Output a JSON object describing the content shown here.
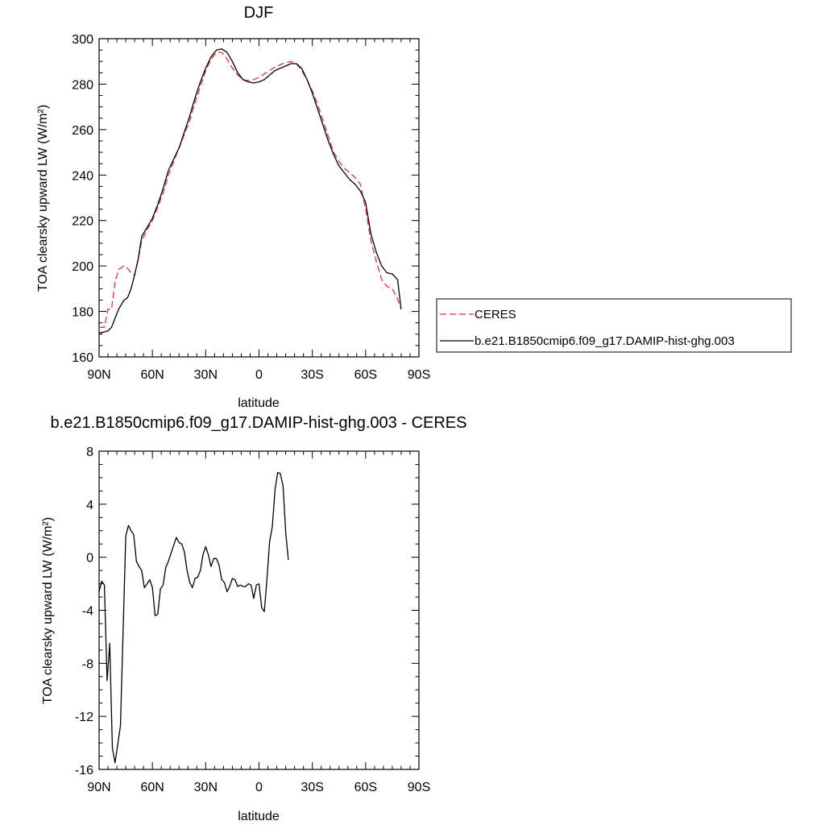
{
  "chart_data": [
    {
      "type": "line",
      "title": "DJF",
      "xlabel": "latitude",
      "ylabel": "TOA clearsky upward LW (W/m²)",
      "xlim": [
        90,
        -90
      ],
      "ylim": [
        160,
        300
      ],
      "x_ticks": [
        {
          "value": 90,
          "label": "90N"
        },
        {
          "value": 60,
          "label": "60N"
        },
        {
          "value": 30,
          "label": "30N"
        },
        {
          "value": 0,
          "label": "0"
        },
        {
          "value": -30,
          "label": "30S"
        },
        {
          "value": -60,
          "label": "60S"
        },
        {
          "value": -90,
          "label": "90S"
        }
      ],
      "y_ticks": [
        {
          "value": 160,
          "label": "160"
        },
        {
          "value": 180,
          "label": "180"
        },
        {
          "value": 200,
          "label": "200"
        },
        {
          "value": 220,
          "label": "220"
        },
        {
          "value": 240,
          "label": "240"
        },
        {
          "value": 260,
          "label": "260"
        },
        {
          "value": 280,
          "label": "280"
        },
        {
          "value": 300,
          "label": "300"
        }
      ],
      "grid": false,
      "legend_position": "right",
      "series": [
        {
          "name": "CERES",
          "color": "#e8322e",
          "dash": "dashed",
          "points": [
            [
              90,
              173
            ],
            [
              87,
              173
            ],
            [
              85,
              181
            ],
            [
              83,
              181
            ],
            [
              81,
              193
            ],
            [
              79,
              198.5
            ],
            [
              76,
              200
            ],
            [
              74,
              199
            ],
            [
              72,
              197
            ],
            [
              70,
              196
            ],
            [
              68,
              203
            ],
            [
              66,
              211
            ],
            [
              63,
              216
            ],
            [
              60,
              220
            ],
            [
              57,
              226
            ],
            [
              54,
              232
            ],
            [
              51,
              240
            ],
            [
              48,
              246
            ],
            [
              45,
              252
            ],
            [
              42,
              258
            ],
            [
              39,
              264
            ],
            [
              36,
              272
            ],
            [
              33,
              279
            ],
            [
              30,
              286
            ],
            [
              27,
              291
            ],
            [
              24,
              294
            ],
            [
              21,
              294
            ],
            [
              18,
              291
            ],
            [
              15,
              287
            ],
            [
              12,
              284
            ],
            [
              9,
              282
            ],
            [
              6,
              281.5
            ],
            [
              3,
              282
            ],
            [
              0,
              283
            ],
            [
              -3,
              284.5
            ],
            [
              -6,
              286
            ],
            [
              -9,
              287.5
            ],
            [
              -12,
              288.5
            ],
            [
              -15,
              289.5
            ],
            [
              -18,
              290
            ],
            [
              -21,
              289
            ],
            [
              -24,
              286
            ],
            [
              -27,
              282
            ],
            [
              -30,
              277
            ],
            [
              -33,
              271
            ],
            [
              -36,
              264
            ],
            [
              -39,
              257
            ],
            [
              -42,
              250
            ],
            [
              -45,
              246
            ],
            [
              -48,
              243
            ],
            [
              -51,
              241
            ],
            [
              -54,
              239
            ],
            [
              -57,
              236
            ],
            [
              -60,
              225
            ],
            [
              -63,
              211
            ],
            [
              -66,
              202
            ],
            [
              -69,
              194
            ],
            [
              -72,
              191
            ],
            [
              -75,
              190
            ],
            [
              -78,
              185.5
            ],
            [
              -80,
              181
            ]
          ]
        },
        {
          "name": "b.e21.B1850cmip6.f09_g17.DAMIP-hist-ghg.003",
          "color": "#000000",
          "dash": "solid",
          "points": [
            [
              90,
              170.5
            ],
            [
              87,
              171
            ],
            [
              85,
              171.5
            ],
            [
              83,
              173
            ],
            [
              81,
              177
            ],
            [
              79,
              181
            ],
            [
              76,
              185
            ],
            [
              74,
              186
            ],
            [
              72,
              190
            ],
            [
              70,
              196
            ],
            [
              68,
              203
            ],
            [
              66,
              213
            ],
            [
              63,
              217
            ],
            [
              60,
              221
            ],
            [
              57,
              227
            ],
            [
              54,
              234
            ],
            [
              51,
              242
            ],
            [
              48,
              247
            ],
            [
              45,
              252
            ],
            [
              42,
              259
            ],
            [
              39,
              266
            ],
            [
              36,
              274
            ],
            [
              33,
              281
            ],
            [
              30,
              287
            ],
            [
              27,
              292
            ],
            [
              24,
              295
            ],
            [
              21,
              295.5
            ],
            [
              18,
              294
            ],
            [
              15,
              290
            ],
            [
              12,
              285
            ],
            [
              9,
              282
            ],
            [
              6,
              281
            ],
            [
              3,
              280.5
            ],
            [
              0,
              281
            ],
            [
              -3,
              282
            ],
            [
              -6,
              284
            ],
            [
              -9,
              286
            ],
            [
              -12,
              287
            ],
            [
              -15,
              288
            ],
            [
              -18,
              289
            ],
            [
              -21,
              289
            ],
            [
              -24,
              287
            ],
            [
              -27,
              282
            ],
            [
              -30,
              276
            ],
            [
              -33,
              269
            ],
            [
              -36,
              262
            ],
            [
              -39,
              255
            ],
            [
              -42,
              249
            ],
            [
              -45,
              244
            ],
            [
              -48,
              241
            ],
            [
              -51,
              238
            ],
            [
              -54,
              236
            ],
            [
              -57,
              233
            ],
            [
              -60,
              228
            ],
            [
              -63,
              214
            ],
            [
              -66,
              206
            ],
            [
              -69,
              200
            ],
            [
              -72,
              197
            ],
            [
              -75,
              196.5
            ],
            [
              -78,
              194
            ],
            [
              -80,
              181
            ]
          ]
        }
      ]
    },
    {
      "type": "line",
      "title": "b.e21.B1850cmip6.f09_g17.DAMIP-hist-ghg.003 - CERES",
      "xlabel": "latitude",
      "ylabel": "TOA clearsky upward LW (W/m²)",
      "xlim": [
        90,
        -90
      ],
      "ylim": [
        -16,
        8
      ],
      "x_ticks": [
        {
          "value": 90,
          "label": "90N"
        },
        {
          "value": 60,
          "label": "60N"
        },
        {
          "value": 30,
          "label": "30N"
        },
        {
          "value": 0,
          "label": "0"
        },
        {
          "value": -30,
          "label": "30S"
        },
        {
          "value": -60,
          "label": "60S"
        },
        {
          "value": -90,
          "label": "90S"
        }
      ],
      "y_ticks": [
        {
          "value": -16,
          "label": "-16"
        },
        {
          "value": -12,
          "label": "-12"
        },
        {
          "value": -8,
          "label": "-8"
        },
        {
          "value": -4,
          "label": "-4"
        },
        {
          "value": 0,
          "label": "0"
        },
        {
          "value": 4,
          "label": "4"
        },
        {
          "value": 8,
          "label": "8"
        }
      ],
      "grid": false,
      "series": [
        {
          "color": "#000000",
          "dash": "solid",
          "points": [
            [
              90,
              -2.6
            ],
            [
              88.5,
              -1.8
            ],
            [
              87,
              -2.1
            ],
            [
              85.5,
              -9.3
            ],
            [
              84,
              -6.5
            ],
            [
              82.5,
              -14.4
            ],
            [
              81,
              -15.5
            ],
            [
              79.5,
              -14.1
            ],
            [
              78,
              -12.7
            ],
            [
              76.5,
              -5.6
            ],
            [
              75,
              1.6
            ],
            [
              73.5,
              2.4
            ],
            [
              72,
              2.0
            ],
            [
              70.5,
              1.7
            ],
            [
              69,
              -0.3
            ],
            [
              67.5,
              -0.7
            ],
            [
              66,
              -1.0
            ],
            [
              64.5,
              -2.3
            ],
            [
              63,
              -2.0
            ],
            [
              61.5,
              -1.7
            ],
            [
              60,
              -2.3
            ],
            [
              58.5,
              -4.4
            ],
            [
              57,
              -4.3
            ],
            [
              55.5,
              -2.4
            ],
            [
              54,
              -2.1
            ],
            [
              52.5,
              -0.8
            ],
            [
              51,
              -0.3
            ],
            [
              49.5,
              0.3
            ],
            [
              48,
              0.9
            ],
            [
              46.5,
              1.5
            ],
            [
              45,
              1.1
            ],
            [
              43.5,
              1.0
            ],
            [
              42,
              0.4
            ],
            [
              40.5,
              -1.0
            ],
            [
              39,
              -1.9
            ],
            [
              37.5,
              -2.3
            ],
            [
              36,
              -1.6
            ],
            [
              34.5,
              -1.5
            ],
            [
              33,
              -1.0
            ],
            [
              31.5,
              0.2
            ],
            [
              30,
              0.8
            ],
            [
              28.5,
              0.2
            ],
            [
              27,
              -0.7
            ],
            [
              25.5,
              -0.1
            ],
            [
              24,
              -0.1
            ],
            [
              22.5,
              -0.6
            ],
            [
              21,
              -1.7
            ],
            [
              19.5,
              -1.9
            ],
            [
              18,
              -2.6
            ],
            [
              16.5,
              -2.2
            ],
            [
              15,
              -1.6
            ],
            [
              13.5,
              -1.7
            ],
            [
              12,
              -2.2
            ],
            [
              10.5,
              -2.1
            ],
            [
              9,
              -2.2
            ],
            [
              7.5,
              -2.2
            ],
            [
              6,
              -2.0
            ],
            [
              4.5,
              -2.1
            ],
            [
              3,
              -3.1
            ],
            [
              1.5,
              -2.1
            ],
            [
              0,
              -2.0
            ],
            [
              -1.5,
              -3.8
            ],
            [
              -3,
              -4.1
            ],
            [
              -4.5,
              -1.6
            ],
            [
              -6,
              1.2
            ],
            [
              -7.5,
              2.3
            ],
            [
              -9,
              5.1
            ],
            [
              -10.5,
              6.4
            ],
            [
              -12,
              6.3
            ],
            [
              -13.5,
              5.4
            ],
            [
              -15,
              1.9
            ],
            [
              -16.5,
              -0.2
            ]
          ]
        }
      ]
    }
  ]
}
